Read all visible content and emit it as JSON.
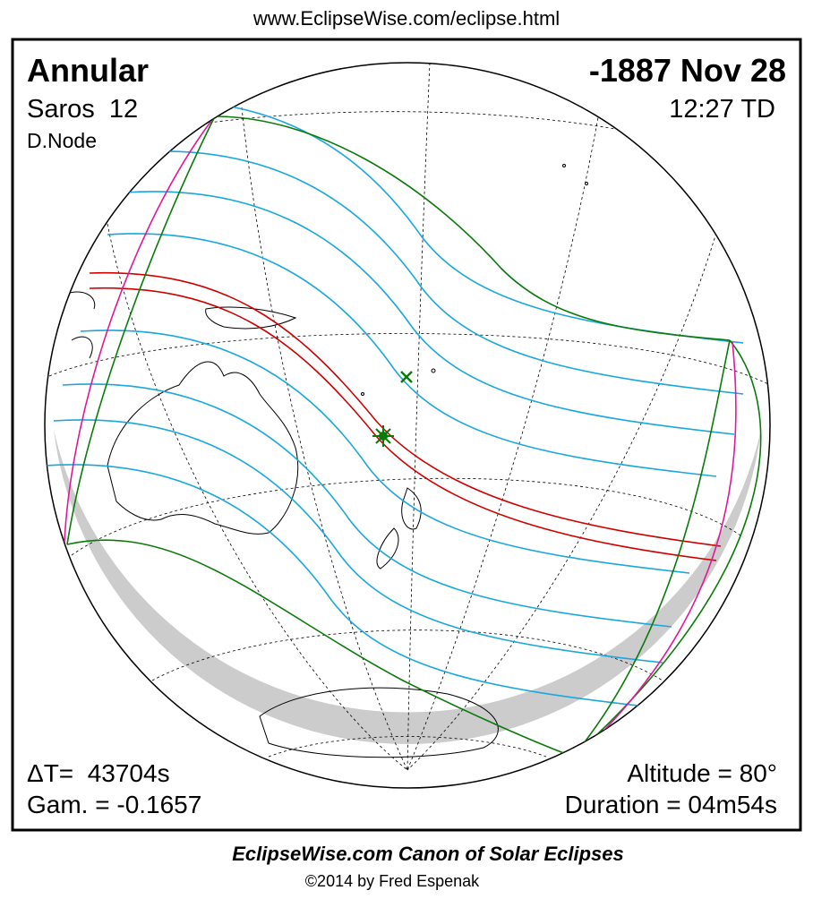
{
  "header": {
    "url": "www.EclipseWise.com/eclipse.html"
  },
  "labels": {
    "type": "Annular",
    "saros": "Saros  12",
    "node": "D.Node",
    "date": "-1887 Nov 28",
    "time": "12:27 TD",
    "delta_t": "ΔT=  43704s",
    "gamma": "Gam. = -0.1657",
    "altitude": "Altitude = 80°",
    "duration": "Duration = 04m54s"
  },
  "footer": {
    "title": "EclipseWise.com Canon of Solar Eclipses",
    "credit": "©2014 by Fred Espenak"
  }
}
